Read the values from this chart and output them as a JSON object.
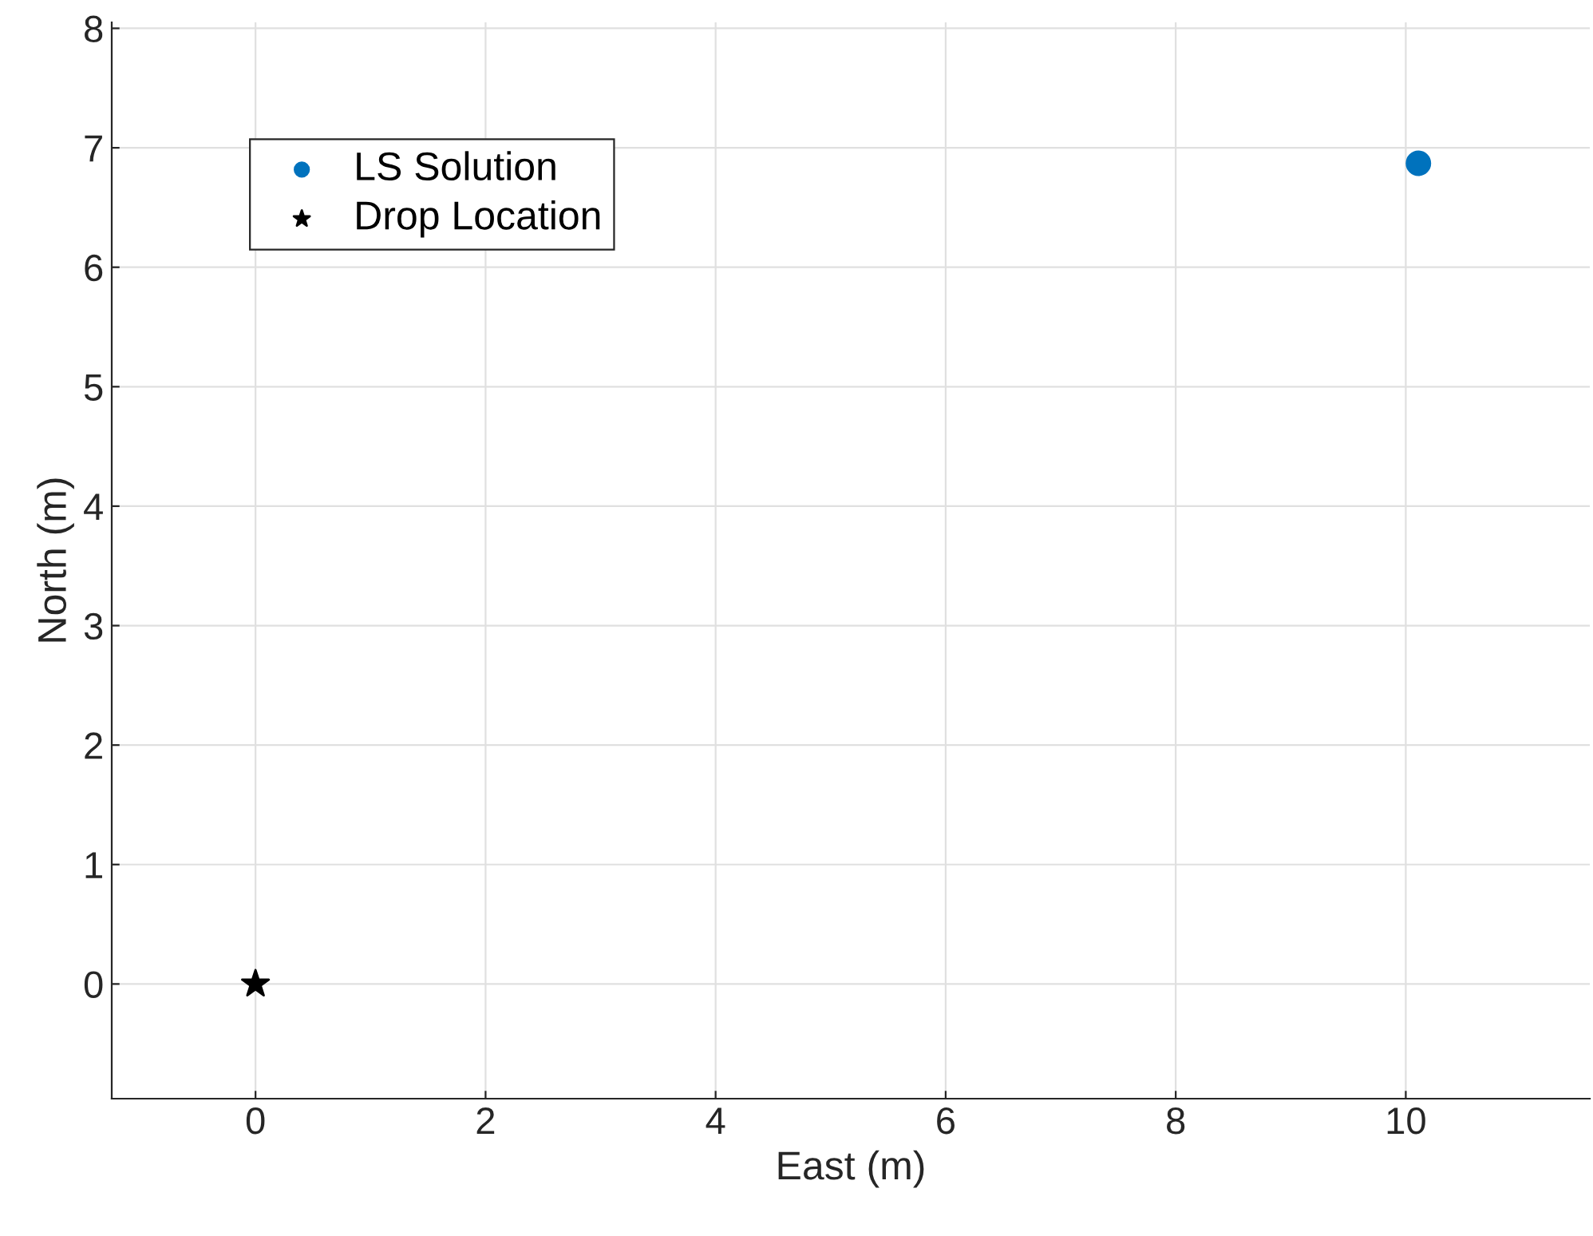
{
  "chart_data": {
    "type": "scatter",
    "xlabel": "East (m)",
    "ylabel": "North (m)",
    "series": [
      {
        "name": "LS Solution",
        "color": "#0072bd",
        "marker": "circle",
        "x": [
          10.11
        ],
        "values": [
          6.87
        ]
      },
      {
        "name": "Drop Location",
        "color": "#000000",
        "marker": "star",
        "x": [
          0
        ],
        "values": [
          0
        ]
      }
    ],
    "xlim": [
      -1.25,
      11.6
    ],
    "ylim": [
      -0.96,
      8.05
    ],
    "xticks": [
      0,
      2,
      4,
      6,
      8,
      10
    ],
    "yticks": [
      0,
      1,
      2,
      3,
      4,
      5,
      6,
      7,
      8
    ],
    "grid": true,
    "legend": "top left"
  }
}
